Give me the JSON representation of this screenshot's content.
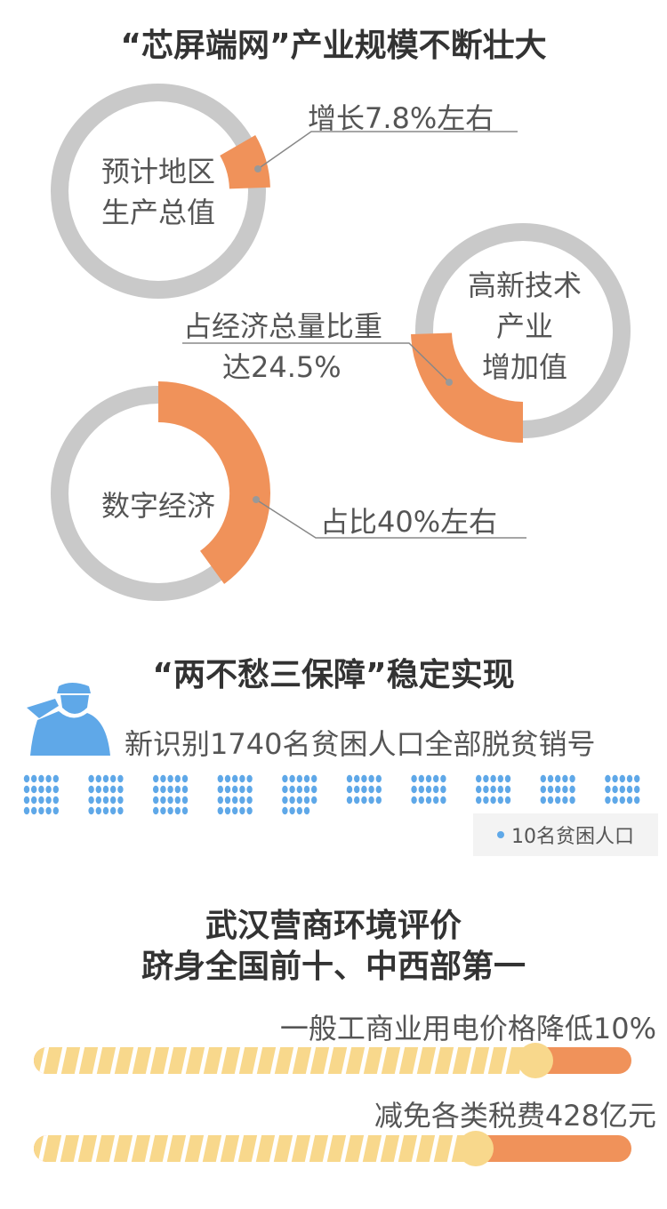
{
  "section1": {
    "title": "“芯屏端网”产业规模不断壮大",
    "donuts": [
      {
        "center_label": [
          "预计地区",
          "生产总值"
        ],
        "callout": [
          "增长7.8%左右"
        ],
        "percent": 7.8
      },
      {
        "center_label": [
          "高新技术",
          "产业",
          "增加值"
        ],
        "callout": [
          "占经济总量比重",
          "达24.5%"
        ],
        "percent": 24.5
      },
      {
        "center_label": [
          "数字经济"
        ],
        "callout": [
          "占比40%左右"
        ],
        "percent": 40
      }
    ],
    "colors": {
      "ring": "#c9c9c9",
      "highlight": "#f0925a"
    }
  },
  "section2": {
    "title": "“两不愁三保障”稳定实现",
    "icon": "saluting-soldier-icon",
    "headline": "新识别1740名贫困人口全部脱贫销号",
    "dot_count": 174,
    "legend": "10名贫困人口",
    "color": "#5fa8e8"
  },
  "section3": {
    "title_line1": "武汉营商环境评价",
    "title_line2": "跻身全国前十、中西部第一",
    "bars": [
      {
        "label": "一般工商业用电价格降低10%"
      },
      {
        "label": "减免各类税费428亿元"
      }
    ],
    "colors": {
      "stripe": "#f8d88c",
      "end": "#f0925a"
    }
  }
}
